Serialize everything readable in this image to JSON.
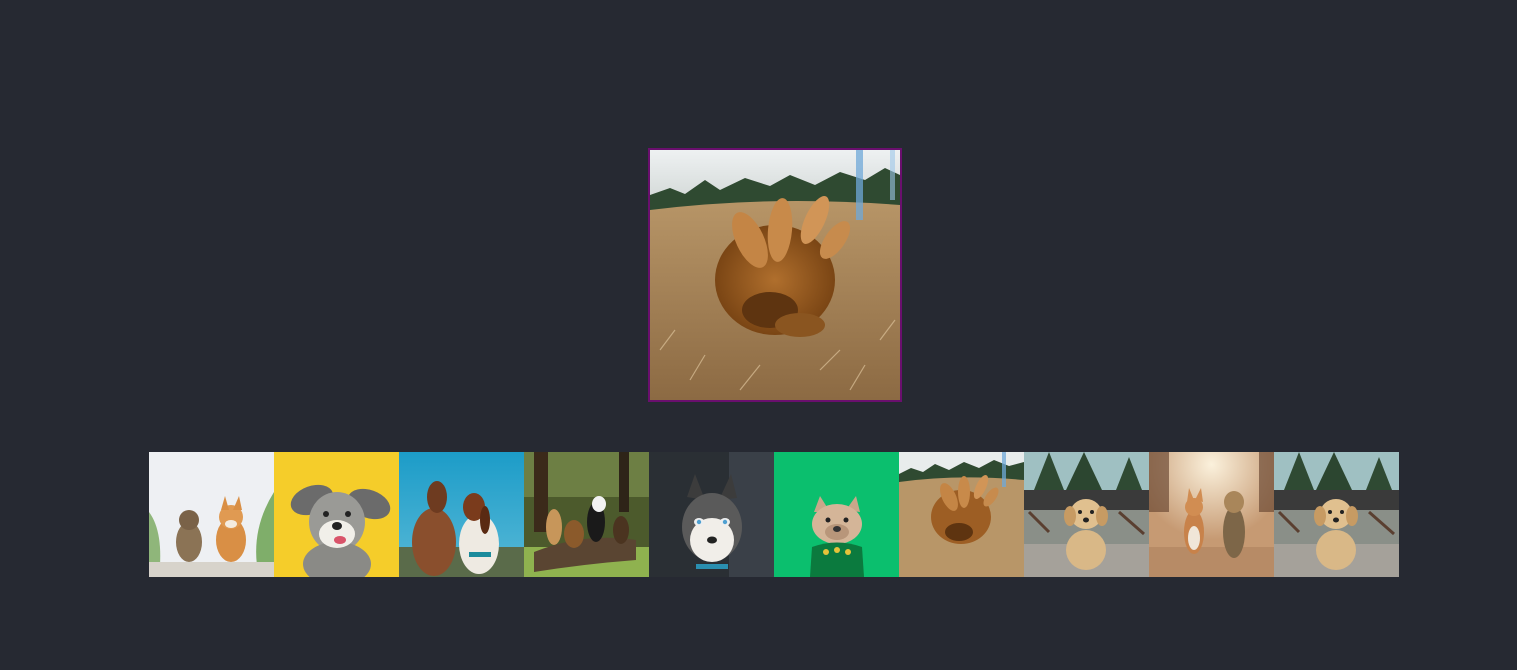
{
  "gallery": {
    "background": "#262932",
    "selected_index": 6,
    "main_border_color": "#6a0f6e",
    "main": {
      "subject": "golden-retriever-rolling-in-grass",
      "icon": "photo-icon"
    },
    "thumbnails": [
      {
        "subject": "yorkie-and-corgi-on-path",
        "bg": "#eef0f3"
      },
      {
        "subject": "schnauzer-on-yellow",
        "bg": "#f5cd2a"
      },
      {
        "subject": "two-dogs-blue-sky",
        "bg": "#1f9fc4"
      },
      {
        "subject": "dogs-on-log-in-woods",
        "bg": "#4c5a2c"
      },
      {
        "subject": "husky-indoors",
        "bg": "#2a2f34"
      },
      {
        "subject": "bulldog-on-green",
        "bg": "#0bbf6e"
      },
      {
        "subject": "golden-retriever-rolling-in-grass",
        "bg": "#c9a679"
      },
      {
        "subject": "golden-puppy-on-patio",
        "bg": "#8a8f88"
      },
      {
        "subject": "corgi-and-terrier-on-road",
        "bg": "#c69a73"
      },
      {
        "subject": "golden-puppy-on-patio",
        "bg": "#8a8f88"
      }
    ]
  }
}
